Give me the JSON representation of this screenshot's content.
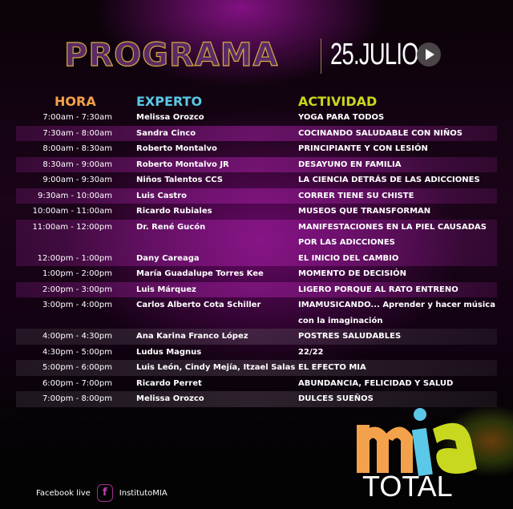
{
  "header": {
    "title": "PROGRAMA",
    "date": "25.JULIO",
    "play_icon": "play-icon"
  },
  "columns": {
    "hora": "HORA",
    "experto": "EXPERTO",
    "actividad": "ACTIVIDAD"
  },
  "colors": {
    "hora": "#f4a14b",
    "experto": "#5bc8e8",
    "actividad": "#c8d81e"
  },
  "rows": [
    {
      "time": "7:00am - 7:30am",
      "expert": "Melissa Orozco",
      "activity": "YOGA PARA TODOS"
    },
    {
      "time": "7:30am - 8:00am",
      "expert": "Sandra Cinco",
      "activity": "COCINANDO SALUDABLE CON NIÑOS"
    },
    {
      "time": "8:00am - 8:30am",
      "expert": "Roberto Montalvo",
      "activity": "PRINCIPIANTE Y CON LESIÓN"
    },
    {
      "time": "8:30am - 9:00am",
      "expert": "Roberto Montalvo JR",
      "activity": "DESAYUNO EN FAMILIA"
    },
    {
      "time": "9:00am - 9:30am",
      "expert": "Niños Talentos CCS",
      "activity": "LA CIENCIA DETRÁS DE LAS ADICCIONES"
    },
    {
      "time": "9:30am - 10:00am",
      "expert": "Luis Castro",
      "activity": "CORRER TIENE SU CHISTE"
    },
    {
      "time": "10:00am - 11:00am",
      "expert": "Ricardo Rubiales",
      "activity": "MUSEOS QUE TRANSFORMAN"
    },
    {
      "time": "11:00am - 12:00pm",
      "expert": "Dr. René Gucón",
      "activity": "MANIFESTACIONES EN LA PIEL CAUSADAS POR LAS ADICCIONES"
    },
    {
      "time": "12:00pm - 1:00pm",
      "expert": "Dany Careaga",
      "activity": "EL INICIO DEL CAMBIO"
    },
    {
      "time": "1:00pm - 2:00pm",
      "expert": "María Guadalupe Torres Kee",
      "activity": "MOMENTO DE DECISIÓN"
    },
    {
      "time": "2:00pm - 3:00pm",
      "expert": "Luis Márquez",
      "activity": "LIGERO PORQUE AL RATO ENTRENO"
    },
    {
      "time": "3:00pm - 4:00pm",
      "expert": "Carlos Alberto Cota Schiller",
      "activity": "IMAMUSICANDO... Aprender y hacer música con la imaginación"
    },
    {
      "time": "4:00pm - 4:30pm",
      "expert": "Ana Karina Franco López",
      "activity": "POSTRES SALUDABLES"
    },
    {
      "time": "4:30pm - 5:00pm",
      "expert": "Ludus Magnus",
      "activity": "22/22"
    },
    {
      "time": "5:00pm - 6:00pm",
      "expert": "Luis León, Cindy Mejía, Itzael Salas",
      "activity": "EL EFECTO MIA"
    },
    {
      "time": "6:00pm - 7:00pm",
      "expert": "Ricardo Perret",
      "activity": "ABUNDANCIA, FELICIDAD Y SALUD"
    },
    {
      "time": "7:00pm - 8:00pm",
      "expert": "Melissa Orozco",
      "activity": "DULCES SUEÑOS"
    }
  ],
  "footer": {
    "label": "Facebook live",
    "icon": "facebook-icon",
    "handle": "InstitutoMIA"
  },
  "logo": {
    "text_top": "mia",
    "text_bottom": "TOTAL"
  }
}
